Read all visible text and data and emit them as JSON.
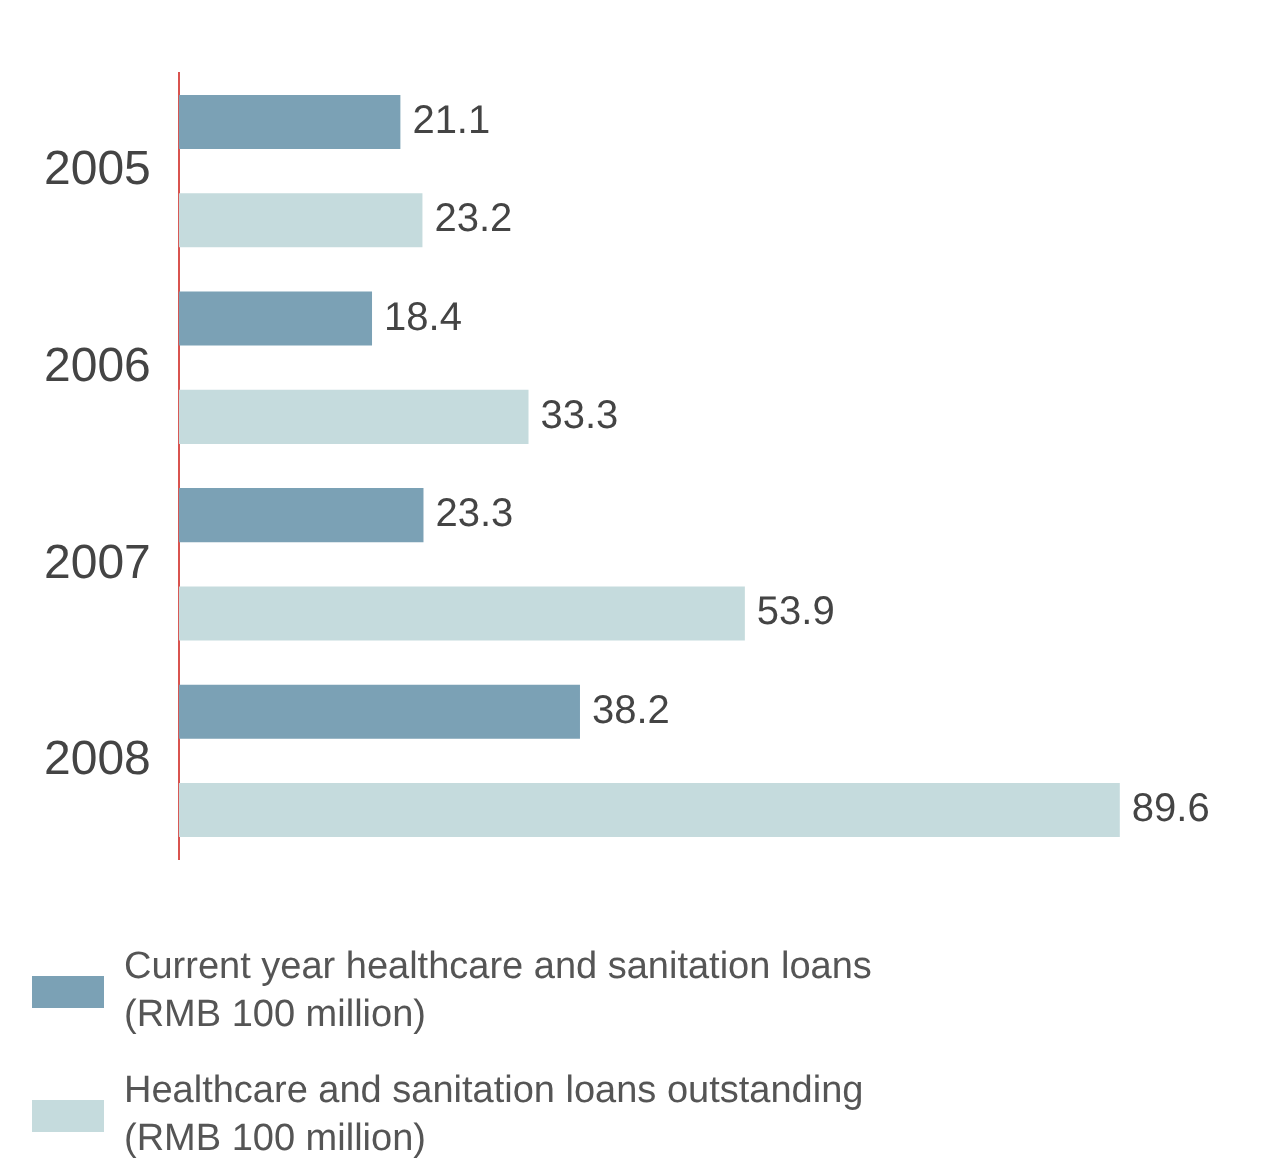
{
  "chart_data": {
    "type": "bar",
    "orientation": "horizontal",
    "categories": [
      "2005",
      "2006",
      "2007",
      "2008"
    ],
    "series": [
      {
        "name": "Current year healthcare and sanitation loans (RMB 100 million)",
        "color": "#7ba1b5",
        "values": [
          21.1,
          18.4,
          23.3,
          38.2
        ]
      },
      {
        "name": "Healthcare and sanitation loans outstanding (RMB 100 million)",
        "color": "#c5dbdd",
        "values": [
          23.2,
          33.3,
          53.9,
          89.6
        ]
      }
    ],
    "data_labels": true,
    "grid": false,
    "legend": "bottom"
  }
}
